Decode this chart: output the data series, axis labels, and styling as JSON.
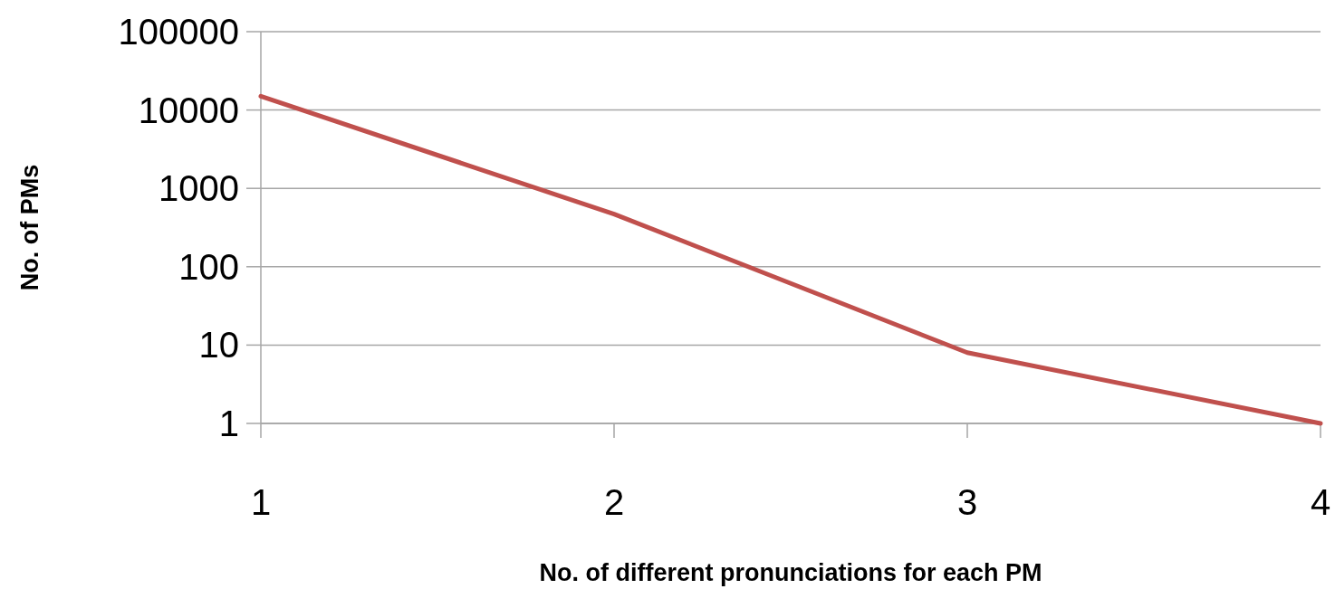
{
  "chart_data": {
    "type": "line",
    "xlabel": "No. of different pronunciations for each PM",
    "ylabel": "No. of PMs",
    "x": [
      1,
      2,
      3,
      4
    ],
    "series": [
      {
        "color": "#c0504d",
        "values": [
          15000,
          470,
          8,
          1
        ]
      }
    ],
    "xlim": [
      1,
      4
    ],
    "xticks": [
      1,
      2,
      3,
      4
    ],
    "ylim": [
      1,
      100000
    ],
    "yticks": [
      1,
      10,
      100,
      1000,
      10000,
      100000
    ],
    "log": "y",
    "grid": "y",
    "marker": "none",
    "line_style": "solid"
  }
}
